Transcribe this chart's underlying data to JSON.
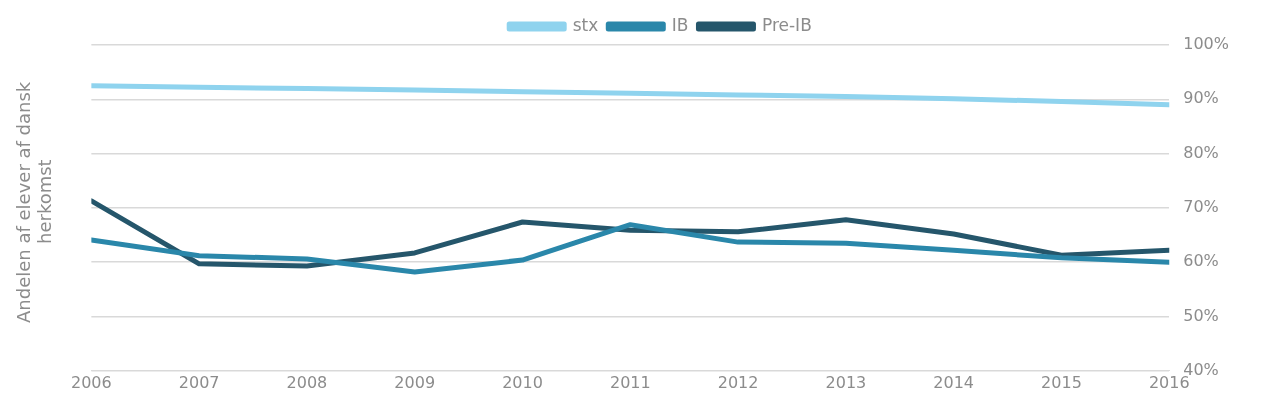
{
  "chart_data": {
    "type": "line",
    "ylabel": "Andelen af elever af dansk herkomst",
    "x": [
      2006,
      2007,
      2008,
      2009,
      2010,
      2011,
      2012,
      2013,
      2014,
      2015,
      2016
    ],
    "xlim": [
      2006,
      2016
    ],
    "xticks": [
      2006,
      2007,
      2008,
      2009,
      2010,
      2011,
      2012,
      2013,
      2014,
      2015,
      2016
    ],
    "ylim": [
      40,
      100
    ],
    "yticks": [
      {
        "value": 40,
        "label": "40%"
      },
      {
        "value": 50,
        "label": "50%"
      },
      {
        "value": 60,
        "label": "60%"
      },
      {
        "value": 70,
        "label": "70%"
      },
      {
        "value": 80,
        "label": "80%"
      },
      {
        "value": 90,
        "label": "90%"
      },
      {
        "value": 100,
        "label": "100%"
      }
    ],
    "grid": "y",
    "legend": "top",
    "marker": "none",
    "line_style": "solid",
    "series": [
      {
        "name": "stx",
        "color": "#8fd3ee",
        "values": [
          92.5,
          92.2,
          92.0,
          91.7,
          91.4,
          91.1,
          90.8,
          90.5,
          90.1,
          89.6,
          89.0
        ]
      },
      {
        "name": "IB",
        "color": "#2a87aa",
        "values": [
          64.1,
          61.2,
          60.6,
          58.2,
          60.4,
          66.9,
          63.7,
          63.5,
          62.2,
          60.8,
          60.0
        ]
      },
      {
        "name": "Pre-IB",
        "color": "#25566b",
        "values": [
          71.3,
          59.7,
          59.3,
          61.7,
          67.4,
          65.9,
          65.6,
          67.8,
          65.2,
          61.3,
          62.2
        ]
      }
    ]
  }
}
